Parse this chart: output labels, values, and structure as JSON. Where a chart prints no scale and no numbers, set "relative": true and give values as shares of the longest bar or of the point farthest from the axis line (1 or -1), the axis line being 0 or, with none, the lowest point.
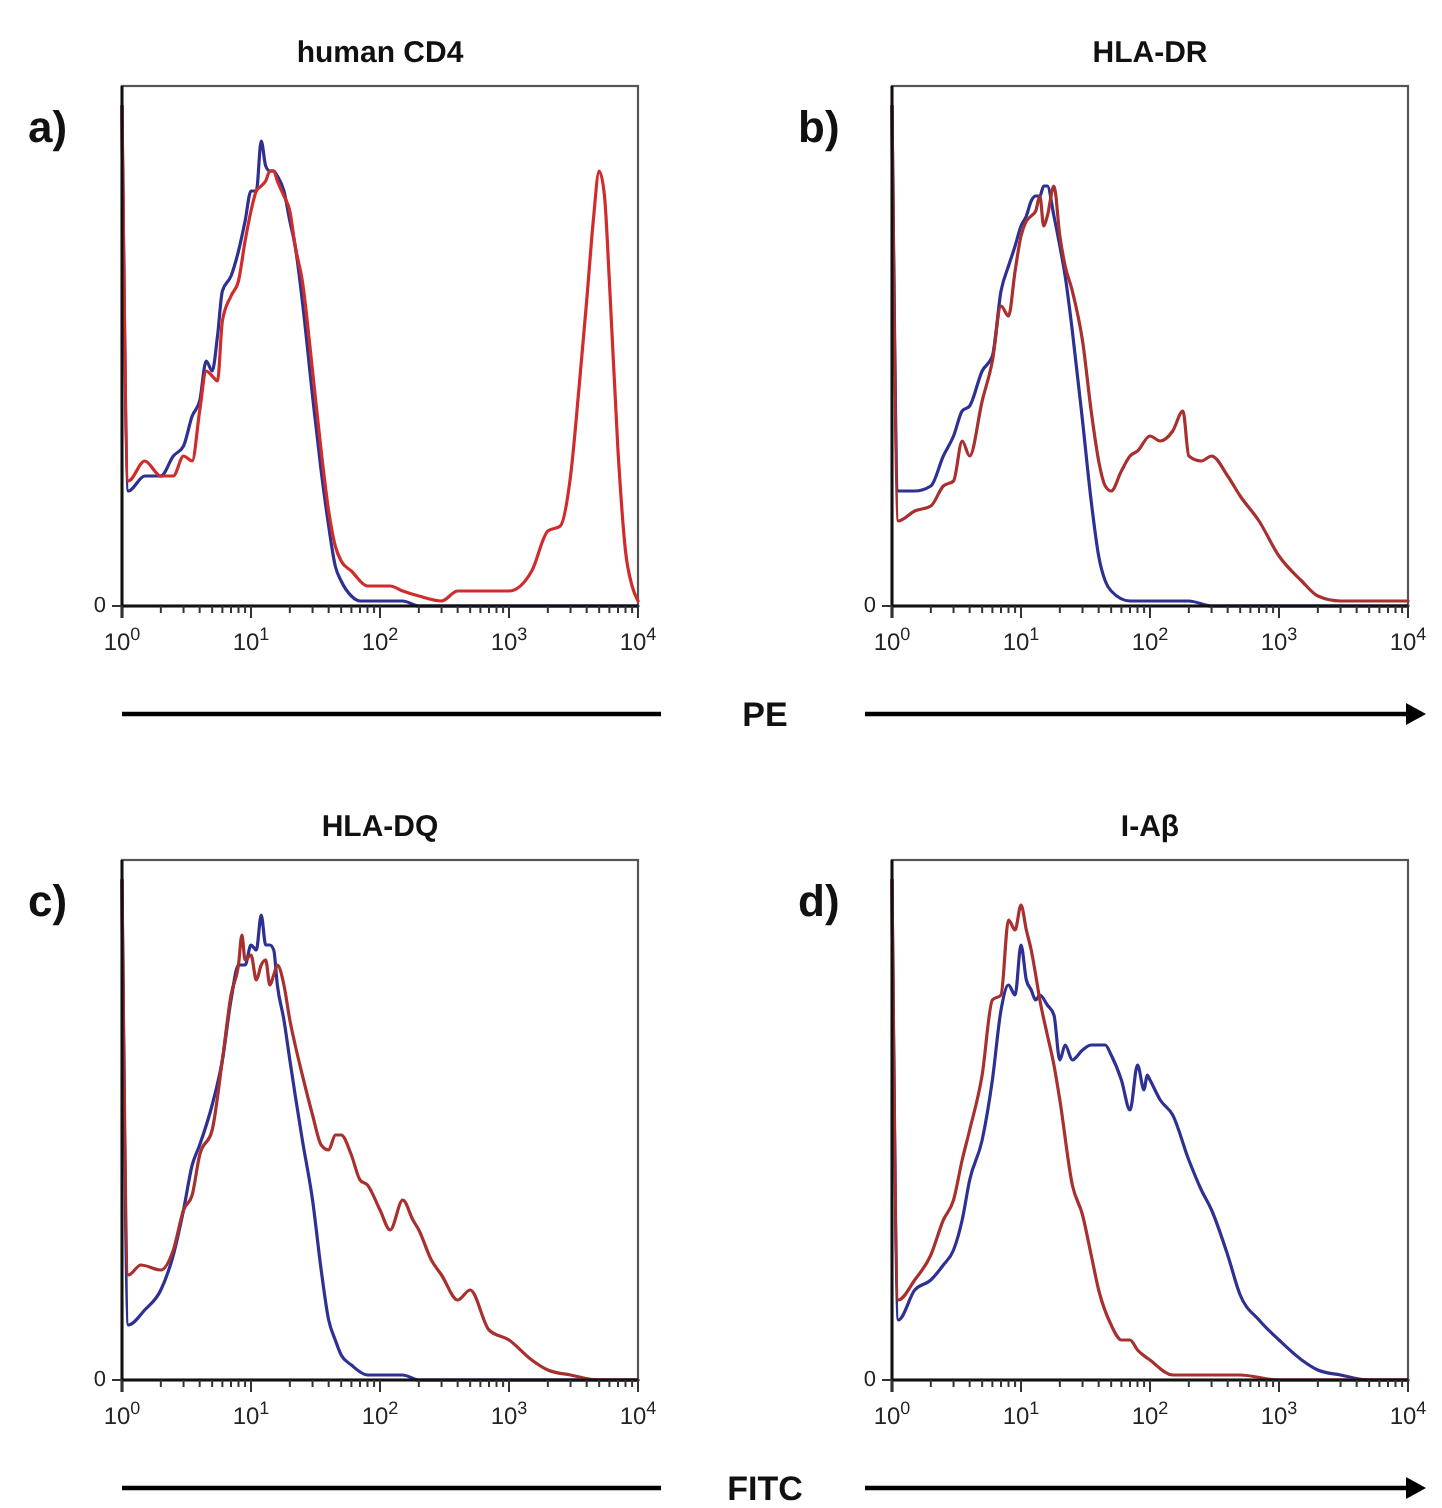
{
  "chart_data": [
    {
      "type": "line",
      "title": "human CD4",
      "xlabel": "PE",
      "annotations": [
        "a)",
        "0"
      ],
      "log": "x",
      "relative": true,
      "xlim": [
        1,
        10000
      ],
      "xticks": [
        {
          "value": 1,
          "label": "10$^{0}$"
        },
        {
          "value": 2,
          "label": null
        },
        {
          "value": 3,
          "label": null
        },
        {
          "value": 4,
          "label": null
        },
        {
          "value": 5,
          "label": null
        },
        {
          "value": 6,
          "label": null
        },
        {
          "value": 7,
          "label": null
        },
        {
          "value": 8,
          "label": null
        },
        {
          "value": 9,
          "label": null
        },
        {
          "value": 10,
          "label": "10$^{1}$"
        },
        {
          "value": 20,
          "label": null
        },
        {
          "value": 30,
          "label": null
        },
        {
          "value": 40,
          "label": null
        },
        {
          "value": 50,
          "label": null
        },
        {
          "value": 60,
          "label": null
        },
        {
          "value": 70,
          "label": null
        },
        {
          "value": 80,
          "label": null
        },
        {
          "value": 90,
          "label": null
        },
        {
          "value": 100,
          "label": "10$^{2}$"
        },
        {
          "value": 200,
          "label": null
        },
        {
          "value": 300,
          "label": null
        },
        {
          "value": 400,
          "label": null
        },
        {
          "value": 500,
          "label": null
        },
        {
          "value": 600,
          "label": null
        },
        {
          "value": 700,
          "label": null
        },
        {
          "value": 800,
          "label": null
        },
        {
          "value": 900,
          "label": null
        },
        {
          "value": 1000,
          "label": "10$^{3}$"
        },
        {
          "value": 2000,
          "label": null
        },
        {
          "value": 3000,
          "label": null
        },
        {
          "value": 4000,
          "label": null
        },
        {
          "value": 5000,
          "label": null
        },
        {
          "value": 6000,
          "label": null
        },
        {
          "value": 7000,
          "label": null
        },
        {
          "value": 8000,
          "label": null
        },
        {
          "value": 9000,
          "label": null
        },
        {
          "value": 10000,
          "label": "10$^{4}$"
        }
      ],
      "series": [
        {
          "color": "#2e3192",
          "x": [
            1,
            1.12,
            1.5,
            2,
            2.5,
            3,
            3.5,
            4,
            4.5,
            5,
            5.5,
            6,
            7,
            8,
            9,
            10,
            11,
            12,
            13,
            14,
            15,
            16,
            18,
            20,
            22,
            25,
            30,
            35,
            40,
            45,
            50,
            60,
            70,
            100,
            150,
            200,
            300,
            1000,
            10000
          ],
          "values": [
            1,
            0.23,
            0.26,
            0.26,
            0.3,
            0.32,
            0.38,
            0.41,
            0.49,
            0.47,
            0.54,
            0.63,
            0.66,
            0.71,
            0.77,
            0.83,
            0.83,
            0.93,
            0.88,
            0.87,
            0.87,
            0.86,
            0.83,
            0.77,
            0.72,
            0.61,
            0.42,
            0.27,
            0.16,
            0.08,
            0.05,
            0.02,
            0.01,
            0.01,
            0.01,
            0,
            0,
            0,
            0
          ]
        },
        {
          "color": "#d12c2c",
          "x": [
            1,
            1.12,
            1.5,
            2,
            2.5,
            3,
            3.5,
            4,
            4.5,
            5,
            5.5,
            6,
            7,
            8,
            9,
            10,
            11,
            12,
            13,
            14,
            15,
            16,
            18,
            20,
            22,
            25,
            30,
            35,
            40,
            45,
            50,
            60,
            80,
            100,
            120,
            150,
            200,
            300,
            400,
            700,
            1000,
            1500,
            2000,
            2500,
            3000,
            3500,
            4000,
            4500,
            5000,
            5500,
            6000,
            7000,
            8000,
            9000,
            10000
          ],
          "values": [
            1,
            0.25,
            0.29,
            0.26,
            0.26,
            0.3,
            0.29,
            0.39,
            0.47,
            0.46,
            0.45,
            0.57,
            0.62,
            0.65,
            0.73,
            0.79,
            0.83,
            0.84,
            0.85,
            0.87,
            0.87,
            0.85,
            0.82,
            0.79,
            0.72,
            0.65,
            0.47,
            0.31,
            0.19,
            0.12,
            0.09,
            0.07,
            0.04,
            0.04,
            0.04,
            0.03,
            0.02,
            0.01,
            0.03,
            0.03,
            0.03,
            0.07,
            0.15,
            0.16,
            0.26,
            0.44,
            0.61,
            0.77,
            0.87,
            0.82,
            0.65,
            0.31,
            0.11,
            0.04,
            0.01
          ]
        }
      ]
    },
    {
      "type": "line",
      "title": "HLA-DR",
      "annotations": [
        "b)",
        "0"
      ],
      "log": "x",
      "relative": true,
      "xlim": [
        1,
        10000
      ],
      "xticks": [
        {
          "value": 1,
          "label": "10$^{0}$"
        },
        {
          "value": 2,
          "label": null
        },
        {
          "value": 3,
          "label": null
        },
        {
          "value": 4,
          "label": null
        },
        {
          "value": 5,
          "label": null
        },
        {
          "value": 6,
          "label": null
        },
        {
          "value": 7,
          "label": null
        },
        {
          "value": 8,
          "label": null
        },
        {
          "value": 9,
          "label": null
        },
        {
          "value": 10,
          "label": "10$^{1}$"
        },
        {
          "value": 20,
          "label": null
        },
        {
          "value": 30,
          "label": null
        },
        {
          "value": 40,
          "label": null
        },
        {
          "value": 50,
          "label": null
        },
        {
          "value": 60,
          "label": null
        },
        {
          "value": 70,
          "label": null
        },
        {
          "value": 80,
          "label": null
        },
        {
          "value": 90,
          "label": null
        },
        {
          "value": 100,
          "label": "10$^{2}$"
        },
        {
          "value": 200,
          "label": null
        },
        {
          "value": 300,
          "label": null
        },
        {
          "value": 400,
          "label": null
        },
        {
          "value": 500,
          "label": null
        },
        {
          "value": 600,
          "label": null
        },
        {
          "value": 700,
          "label": null
        },
        {
          "value": 800,
          "label": null
        },
        {
          "value": 900,
          "label": null
        },
        {
          "value": 1000,
          "label": "10$^{3}$"
        },
        {
          "value": 2000,
          "label": null
        },
        {
          "value": 3000,
          "label": null
        },
        {
          "value": 4000,
          "label": null
        },
        {
          "value": 5000,
          "label": null
        },
        {
          "value": 6000,
          "label": null
        },
        {
          "value": 7000,
          "label": null
        },
        {
          "value": 8000,
          "label": null
        },
        {
          "value": 9000,
          "label": null
        },
        {
          "value": 10000,
          "label": "10$^{4}$"
        }
      ],
      "series": [
        {
          "color": "#2e3192",
          "x": [
            1,
            1.12,
            1.5,
            2,
            2.5,
            3,
            3.5,
            4,
            5,
            6,
            7,
            8,
            9,
            10,
            11,
            12,
            13,
            14,
            15,
            16,
            18,
            20,
            22,
            25,
            30,
            35,
            40,
            45,
            50,
            70,
            100,
            150,
            200,
            300,
            10000
          ],
          "values": [
            1,
            0.23,
            0.23,
            0.24,
            0.3,
            0.34,
            0.39,
            0.4,
            0.47,
            0.5,
            0.63,
            0.68,
            0.72,
            0.76,
            0.78,
            0.81,
            0.82,
            0.82,
            0.84,
            0.84,
            0.78,
            0.72,
            0.66,
            0.55,
            0.37,
            0.21,
            0.1,
            0.05,
            0.03,
            0.01,
            0.01,
            0.01,
            0.01,
            0,
            0
          ]
        },
        {
          "color": "#a8302e",
          "x": [
            1,
            1.12,
            1.5,
            2,
            2.5,
            3,
            3.5,
            4,
            5,
            6,
            7,
            8,
            9,
            10,
            11,
            12,
            13,
            14,
            15,
            16,
            18,
            20,
            22,
            25,
            30,
            35,
            40,
            45,
            50,
            60,
            70,
            80,
            100,
            120,
            150,
            180,
            200,
            250,
            300,
            400,
            500,
            700,
            1000,
            1500,
            2000,
            3000,
            5000,
            10000
          ],
          "values": [
            1,
            0.17,
            0.19,
            0.2,
            0.24,
            0.25,
            0.33,
            0.3,
            0.41,
            0.49,
            0.6,
            0.58,
            0.67,
            0.74,
            0.77,
            0.78,
            0.79,
            0.82,
            0.76,
            0.78,
            0.84,
            0.74,
            0.68,
            0.63,
            0.53,
            0.39,
            0.29,
            0.24,
            0.23,
            0.27,
            0.3,
            0.31,
            0.34,
            0.33,
            0.35,
            0.39,
            0.3,
            0.29,
            0.3,
            0.26,
            0.22,
            0.17,
            0.1,
            0.05,
            0.02,
            0.01,
            0.01,
            0.01
          ]
        }
      ]
    },
    {
      "type": "line",
      "title": "HLA-DQ",
      "xlabel": "FITC",
      "annotations": [
        "c)",
        "0"
      ],
      "log": "x",
      "relative": true,
      "xlim": [
        1,
        10000
      ],
      "xticks": [
        {
          "value": 1,
          "label": "10$^{0}$"
        },
        {
          "value": 2,
          "label": null
        },
        {
          "value": 3,
          "label": null
        },
        {
          "value": 4,
          "label": null
        },
        {
          "value": 5,
          "label": null
        },
        {
          "value": 6,
          "label": null
        },
        {
          "value": 7,
          "label": null
        },
        {
          "value": 8,
          "label": null
        },
        {
          "value": 9,
          "label": null
        },
        {
          "value": 10,
          "label": "10$^{1}$"
        },
        {
          "value": 20,
          "label": null
        },
        {
          "value": 30,
          "label": null
        },
        {
          "value": 40,
          "label": null
        },
        {
          "value": 50,
          "label": null
        },
        {
          "value": 60,
          "label": null
        },
        {
          "value": 70,
          "label": null
        },
        {
          "value": 80,
          "label": null
        },
        {
          "value": 90,
          "label": null
        },
        {
          "value": 100,
          "label": "10$^{2}$"
        },
        {
          "value": 200,
          "label": null
        },
        {
          "value": 300,
          "label": null
        },
        {
          "value": 400,
          "label": null
        },
        {
          "value": 500,
          "label": null
        },
        {
          "value": 600,
          "label": null
        },
        {
          "value": 700,
          "label": null
        },
        {
          "value": 800,
          "label": null
        },
        {
          "value": 900,
          "label": null
        },
        {
          "value": 1000,
          "label": "10$^{3}$"
        },
        {
          "value": 2000,
          "label": null
        },
        {
          "value": 3000,
          "label": null
        },
        {
          "value": 4000,
          "label": null
        },
        {
          "value": 5000,
          "label": null
        },
        {
          "value": 6000,
          "label": null
        },
        {
          "value": 7000,
          "label": null
        },
        {
          "value": 8000,
          "label": null
        },
        {
          "value": 9000,
          "label": null
        },
        {
          "value": 10000,
          "label": "10$^{4}$"
        }
      ],
      "series": [
        {
          "color": "#2e3192",
          "x": [
            1,
            1.12,
            1.5,
            2,
            2.5,
            3,
            3.5,
            4,
            5,
            6,
            7,
            8,
            9,
            10,
            11,
            12,
            13,
            14,
            15,
            16,
            18,
            20,
            22,
            25,
            30,
            35,
            40,
            45,
            50,
            60,
            80,
            100,
            150,
            200,
            10000
          ],
          "values": [
            1,
            0.11,
            0.14,
            0.18,
            0.25,
            0.34,
            0.43,
            0.47,
            0.55,
            0.64,
            0.76,
            0.83,
            0.83,
            0.87,
            0.86,
            0.93,
            0.87,
            0.87,
            0.86,
            0.79,
            0.72,
            0.64,
            0.57,
            0.48,
            0.36,
            0.22,
            0.12,
            0.08,
            0.05,
            0.03,
            0.01,
            0.01,
            0.01,
            0,
            0
          ]
        },
        {
          "color": "#a8302e",
          "x": [
            1,
            1.12,
            1.4,
            2,
            2.5,
            3,
            3.5,
            4,
            5,
            6,
            7,
            8,
            8.5,
            9,
            10,
            11,
            12,
            13,
            14,
            15,
            16,
            18,
            20,
            22,
            25,
            30,
            35,
            40,
            45,
            50,
            60,
            70,
            80,
            100,
            120,
            150,
            180,
            200,
            250,
            300,
            400,
            500,
            700,
            1000,
            1500,
            2000,
            3000,
            5000,
            10000
          ],
          "values": [
            1,
            0.21,
            0.23,
            0.22,
            0.26,
            0.34,
            0.37,
            0.45,
            0.5,
            0.64,
            0.77,
            0.83,
            0.89,
            0.84,
            0.85,
            0.8,
            0.83,
            0.84,
            0.79,
            0.81,
            0.83,
            0.79,
            0.72,
            0.67,
            0.61,
            0.53,
            0.47,
            0.46,
            0.49,
            0.49,
            0.45,
            0.4,
            0.39,
            0.34,
            0.3,
            0.36,
            0.32,
            0.3,
            0.24,
            0.21,
            0.16,
            0.18,
            0.1,
            0.08,
            0.04,
            0.02,
            0.01,
            0,
            0
          ]
        }
      ]
    },
    {
      "type": "line",
      "title": "I-Aβ",
      "annotations": [
        "d)",
        "0"
      ],
      "log": "x",
      "relative": true,
      "xlim": [
        1,
        10000
      ],
      "xticks": [
        {
          "value": 1,
          "label": "10$^{0}$"
        },
        {
          "value": 2,
          "label": null
        },
        {
          "value": 3,
          "label": null
        },
        {
          "value": 4,
          "label": null
        },
        {
          "value": 5,
          "label": null
        },
        {
          "value": 6,
          "label": null
        },
        {
          "value": 7,
          "label": null
        },
        {
          "value": 8,
          "label": null
        },
        {
          "value": 9,
          "label": null
        },
        {
          "value": 10,
          "label": "10$^{1}$"
        },
        {
          "value": 20,
          "label": null
        },
        {
          "value": 30,
          "label": null
        },
        {
          "value": 40,
          "label": null
        },
        {
          "value": 50,
          "label": null
        },
        {
          "value": 60,
          "label": null
        },
        {
          "value": 70,
          "label": null
        },
        {
          "value": 80,
          "label": null
        },
        {
          "value": 90,
          "label": null
        },
        {
          "value": 100,
          "label": "10$^{2}$"
        },
        {
          "value": 200,
          "label": null
        },
        {
          "value": 300,
          "label": null
        },
        {
          "value": 400,
          "label": null
        },
        {
          "value": 500,
          "label": null
        },
        {
          "value": 600,
          "label": null
        },
        {
          "value": 700,
          "label": null
        },
        {
          "value": 800,
          "label": null
        },
        {
          "value": 900,
          "label": null
        },
        {
          "value": 1000,
          "label": "10$^{3}$"
        },
        {
          "value": 2000,
          "label": null
        },
        {
          "value": 3000,
          "label": null
        },
        {
          "value": 4000,
          "label": null
        },
        {
          "value": 5000,
          "label": null
        },
        {
          "value": 6000,
          "label": null
        },
        {
          "value": 7000,
          "label": null
        },
        {
          "value": 8000,
          "label": null
        },
        {
          "value": 9000,
          "label": null
        },
        {
          "value": 10000,
          "label": "10$^{4}$"
        }
      ],
      "series": [
        {
          "color": "#2e3192",
          "x": [
            1,
            1.12,
            1.5,
            2,
            2.5,
            3,
            3.5,
            4,
            5,
            6,
            7,
            8,
            9,
            10,
            11,
            12,
            13,
            14,
            16,
            18,
            20,
            22,
            25,
            30,
            35,
            40,
            45,
            50,
            60,
            70,
            80,
            90,
            95,
            100,
            120,
            150,
            200,
            250,
            300,
            400,
            500,
            700,
            1000,
            1500,
            2000,
            3000,
            5000,
            10000
          ],
          "values": [
            1,
            0.12,
            0.18,
            0.2,
            0.23,
            0.26,
            0.32,
            0.4,
            0.48,
            0.6,
            0.74,
            0.79,
            0.77,
            0.87,
            0.8,
            0.78,
            0.76,
            0.77,
            0.75,
            0.73,
            0.64,
            0.67,
            0.64,
            0.66,
            0.67,
            0.67,
            0.67,
            0.65,
            0.6,
            0.54,
            0.63,
            0.58,
            0.61,
            0.6,
            0.56,
            0.53,
            0.44,
            0.38,
            0.34,
            0.25,
            0.17,
            0.12,
            0.08,
            0.04,
            0.02,
            0.01,
            0,
            0
          ]
        },
        {
          "color": "#a8302e",
          "x": [
            1,
            1.12,
            1.5,
            2,
            2.5,
            3,
            3.5,
            4,
            5,
            6,
            7,
            8,
            9,
            10,
            11,
            12,
            13,
            14,
            16,
            18,
            20,
            25,
            30,
            35,
            40,
            50,
            60,
            70,
            80,
            100,
            150,
            200,
            500,
            1000,
            10000
          ],
          "values": [
            1,
            0.16,
            0.2,
            0.25,
            0.32,
            0.36,
            0.44,
            0.5,
            0.61,
            0.76,
            0.77,
            0.92,
            0.9,
            0.95,
            0.9,
            0.86,
            0.81,
            0.76,
            0.69,
            0.63,
            0.56,
            0.39,
            0.33,
            0.25,
            0.18,
            0.11,
            0.08,
            0.08,
            0.06,
            0.04,
            0.01,
            0.01,
            0.01,
            0,
            0
          ]
        }
      ]
    }
  ]
}
